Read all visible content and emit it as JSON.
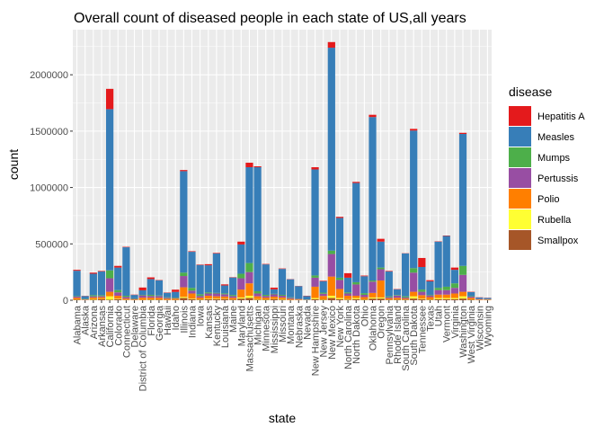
{
  "chart_data": {
    "type": "bar",
    "stacked": true,
    "title": "Overall count of diseased people in each state of US,all years",
    "xlabel": "state",
    "ylabel": "count",
    "ylim": [
      0,
      2400000
    ],
    "yticks": [
      0,
      500000,
      1000000,
      1500000,
      2000000
    ],
    "ytick_labels": [
      "0",
      "500000",
      "1000000",
      "1500000",
      "2000000"
    ],
    "legend": {
      "title": "disease",
      "position": "right"
    },
    "grid": true,
    "categories": [
      "Alabama",
      "Alaska",
      "Arizona",
      "Arkansas",
      "California",
      "Colorado",
      "Connecticut",
      "Delaware",
      "District of Columbia",
      "Florida",
      "Georgia",
      "Hawaii",
      "Idaho",
      "Illinois",
      "Indiana",
      "Iowa",
      "Kansas",
      "Kentucky",
      "Louisiana",
      "Maine",
      "Maryland",
      "Massachusetts",
      "Michigan",
      "Minnesota",
      "Mississippi",
      "Missouri",
      "Montana",
      "Nebraska",
      "Nevada",
      "New Hampshire",
      "New Jersey",
      "New Mexico",
      "New York",
      "North Carolina",
      "North Dakota",
      "Ohio",
      "Oklahoma",
      "Oregon",
      "Pennsylvania",
      "Rhode Island",
      "South Carolina",
      "South Dakota",
      "Tennessee",
      "Texas",
      "Utah",
      "Vermont",
      "Virginia",
      "Washington",
      "West Virginia",
      "Wisconsin",
      "Wyoming"
    ],
    "series": [
      {
        "name": "Hepatitis A",
        "color": "#E41A1C",
        "values": [
          8000,
          2000,
          10000,
          5000,
          180000,
          15000,
          4000,
          3000,
          25000,
          15000,
          3000,
          3000,
          20000,
          10000,
          5000,
          4000,
          10000,
          5000,
          10000,
          3000,
          25000,
          40000,
          8000,
          4000,
          15000,
          4000,
          2000,
          2000,
          3000,
          20000,
          5000,
          50000,
          10000,
          40000,
          10000,
          6000,
          20000,
          25000,
          5000,
          3000,
          2000,
          15000,
          80000,
          10000,
          3000,
          4000,
          20000,
          10000,
          3000,
          2000,
          2000
        ]
      },
      {
        "name": "Measles",
        "color": "#377EB8",
        "values": [
          225000,
          25000,
          190000,
          210000,
          1430000,
          200000,
          430000,
          30000,
          40000,
          140000,
          135000,
          40000,
          50000,
          900000,
          320000,
          260000,
          240000,
          350000,
          70000,
          155000,
          260000,
          850000,
          1100000,
          270000,
          40000,
          230000,
          160000,
          110000,
          30000,
          940000,
          100000,
          1800000,
          530000,
          130000,
          880000,
          150000,
          1450000,
          230000,
          220000,
          50000,
          380000,
          1220000,
          200000,
          120000,
          410000,
          450000,
          120000,
          1170000,
          35000,
          10000,
          10000
        ]
      },
      {
        "name": "Mumps",
        "color": "#4DAF4A",
        "values": [
          5000,
          3000,
          10000,
          8000,
          70000,
          20000,
          10000,
          5000,
          5000,
          10000,
          5000,
          5000,
          5000,
          30000,
          25000,
          15000,
          10000,
          5000,
          8000,
          10000,
          40000,
          80000,
          20000,
          10000,
          5000,
          8000,
          5000,
          3000,
          2000,
          20000,
          10000,
          30000,
          20000,
          10000,
          20000,
          15000,
          10000,
          15000,
          8000,
          5000,
          10000,
          40000,
          20000,
          5000,
          20000,
          30000,
          40000,
          80000,
          5000,
          2000,
          1000
        ]
      },
      {
        "name": "Pertussis",
        "color": "#984EA3",
        "values": [
          10000,
          3000,
          10000,
          10000,
          120000,
          30000,
          15000,
          5000,
          20000,
          15000,
          15000,
          8000,
          5000,
          100000,
          25000,
          15000,
          20000,
          25000,
          20000,
          15000,
          100000,
          100000,
          25000,
          15000,
          20000,
          15000,
          10000,
          5000,
          2000,
          80000,
          20000,
          200000,
          80000,
          20000,
          100000,
          20000,
          100000,
          100000,
          10000,
          20000,
          10000,
          170000,
          30000,
          15000,
          40000,
          40000,
          50000,
          150000,
          10000,
          5000,
          2000
        ]
      },
      {
        "name": "Polio",
        "color": "#FF7F00",
        "values": [
          15000,
          3000,
          15000,
          15000,
          40000,
          25000,
          10000,
          5000,
          20000,
          15000,
          15000,
          10000,
          10000,
          85000,
          45000,
          15000,
          25000,
          20000,
          20000,
          15000,
          70000,
          110000,
          25000,
          15000,
          20000,
          15000,
          8000,
          5000,
          2000,
          100000,
          30000,
          170000,
          80000,
          30000,
          20000,
          20000,
          40000,
          150000,
          10000,
          15000,
          8000,
          40000,
          30000,
          20000,
          30000,
          30000,
          40000,
          40000,
          15000,
          5000,
          5000
        ]
      },
      {
        "name": "Rubella",
        "color": "#FFFF33",
        "values": [
          2000,
          1000,
          5000,
          2000,
          30000,
          5000,
          2000,
          1000,
          1000,
          3000,
          2000,
          1000,
          1000,
          10000,
          5000,
          3000,
          5000,
          5000,
          3000,
          2000,
          10000,
          20000,
          5000,
          3000,
          2000,
          5000,
          1000,
          1000,
          500,
          10000,
          3000,
          20000,
          10000,
          5000,
          10000,
          3000,
          10000,
          10000,
          2000,
          2000,
          2000,
          20000,
          5000,
          3000,
          10000,
          10000,
          10000,
          20000,
          2000,
          1000,
          1000
        ]
      },
      {
        "name": "Smallpox",
        "color": "#A65628",
        "values": [
          5000,
          2000,
          5000,
          10000,
          5000,
          10000,
          3000,
          1000,
          2000,
          5000,
          5000,
          2000,
          3000,
          20000,
          10000,
          5000,
          10000,
          10000,
          10000,
          5000,
          15000,
          20000,
          5000,
          5000,
          10000,
          5000,
          2000,
          1000,
          500,
          10000,
          5000,
          20000,
          10000,
          5000,
          10000,
          5000,
          15000,
          15000,
          5000,
          5000,
          5000,
          15000,
          10000,
          5000,
          10000,
          10000,
          10000,
          15000,
          5000,
          1000,
          1000
        ]
      }
    ]
  }
}
